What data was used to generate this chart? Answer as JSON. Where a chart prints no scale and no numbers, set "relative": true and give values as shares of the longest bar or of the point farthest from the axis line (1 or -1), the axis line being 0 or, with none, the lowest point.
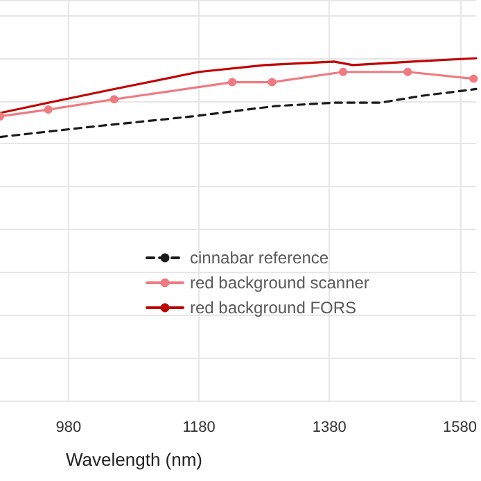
{
  "chart_data": {
    "type": "line",
    "xlabel": "Wavelength (nm)",
    "relative": true,
    "xlim": [
      875,
      1605
    ],
    "xticks": [
      980,
      1180,
      1380,
      1580
    ],
    "grid": true,
    "legend": "bottom",
    "series": [
      {
        "name": "cinnabar reference",
        "color": "#1a1a1a",
        "line_style": "dashed",
        "marker": "none",
        "x": [
          875,
          1016,
          1170,
          1296,
          1387,
          1458,
          1521,
          1605
        ],
        "values": [
          0.77,
          0.8,
          0.83,
          0.86,
          0.87,
          0.87,
          0.89,
          0.91
        ]
      },
      {
        "name": "red background scanner",
        "color": "#f07a80",
        "line_style": "solid",
        "marker": "circle",
        "x": [
          875,
          949,
          1050,
          1231,
          1292,
          1401,
          1500,
          1601
        ],
        "values": [
          0.83,
          0.85,
          0.88,
          0.93,
          0.93,
          0.96,
          0.96,
          0.94
        ]
      },
      {
        "name": "red background FORS",
        "color": "#c00000",
        "line_style": "solid",
        "marker": "none",
        "x": [
          875,
          949,
          1050,
          1180,
          1281,
          1387,
          1416,
          1507,
          1605
        ],
        "values": [
          0.84,
          0.87,
          0.91,
          0.96,
          0.98,
          0.99,
          0.98,
          0.99,
          1.0
        ]
      }
    ]
  }
}
